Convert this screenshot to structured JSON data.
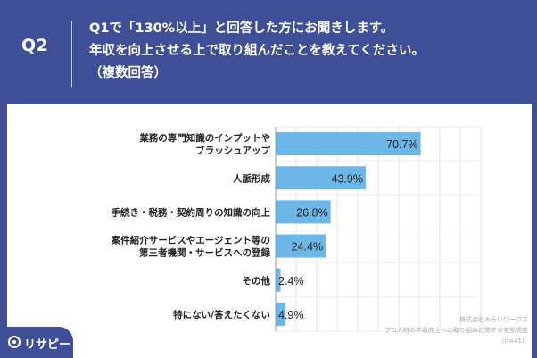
{
  "header": {
    "question_id": "Q2",
    "question_lines": [
      "Q1で「130%以上」と回答した方にお聞きします。",
      "年収を向上させる上で取り組んだことを教えてください。",
      "（複数回答）"
    ]
  },
  "chart_data": {
    "type": "bar",
    "orientation": "horizontal",
    "categories": [
      [
        "業務の専門知識のインプットや",
        "ブラッシュアップ"
      ],
      [
        "人脈形成"
      ],
      [
        "手続き・税務・契約周りの知識の向上"
      ],
      [
        "案件紹介サービスやエージェント等の",
        "第三者機関・サービスへの登録"
      ],
      [
        "その他"
      ],
      [
        "特にない/答えたくない"
      ]
    ],
    "values": [
      70.7,
      43.9,
      26.8,
      24.4,
      2.4,
      4.9
    ],
    "value_labels": [
      "70.7%",
      "43.9%",
      "26.8%",
      "24.4%",
      "2.4%",
      "4.9%"
    ],
    "xlim": [
      0,
      100
    ],
    "unit": "%",
    "bar_color": "#6db6e8",
    "grid": true
  },
  "footer": {
    "source_lines": [
      "株式会社みらいワークス",
      "プロ人材の年収向上への取り組みに関する実態調査",
      "（n=41）"
    ],
    "logo_text": "リサピー"
  }
}
